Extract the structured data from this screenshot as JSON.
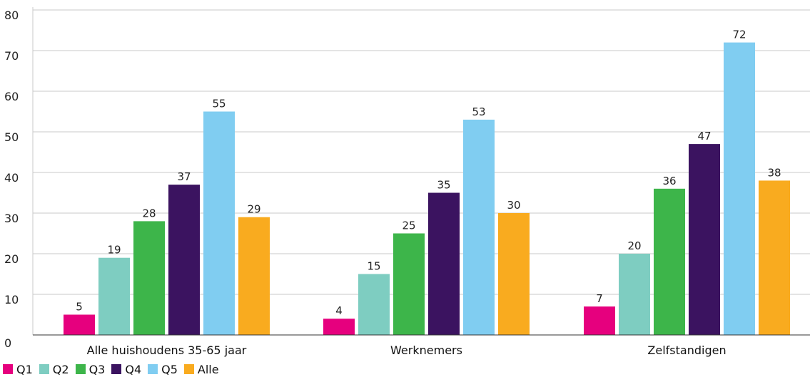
{
  "chart_data": {
    "type": "bar",
    "categories": [
      "Alle huishoudens 35-65 jaar",
      "Werknemers",
      "Zelfstandigen"
    ],
    "series": [
      {
        "name": "Q1",
        "color": "#e6007e",
        "values": [
          5,
          4,
          7
        ]
      },
      {
        "name": "Q2",
        "color": "#7ecdc1",
        "values": [
          19,
          15,
          20
        ]
      },
      {
        "name": "Q3",
        "color": "#3db54a",
        "values": [
          28,
          25,
          36
        ]
      },
      {
        "name": "Q4",
        "color": "#3b1360",
        "values": [
          37,
          35,
          47
        ]
      },
      {
        "name": "Q5",
        "color": "#80cdf1",
        "values": [
          55,
          53,
          72
        ]
      },
      {
        "name": "Alle",
        "color": "#f9ab1f",
        "values": [
          29,
          30,
          38
        ]
      }
    ],
    "ylim": [
      0,
      80
    ],
    "yticks": [
      0,
      10,
      20,
      30,
      40,
      50,
      60,
      70,
      80
    ],
    "grid": true,
    "legend_position": "bottom-left",
    "data_labels": true
  }
}
